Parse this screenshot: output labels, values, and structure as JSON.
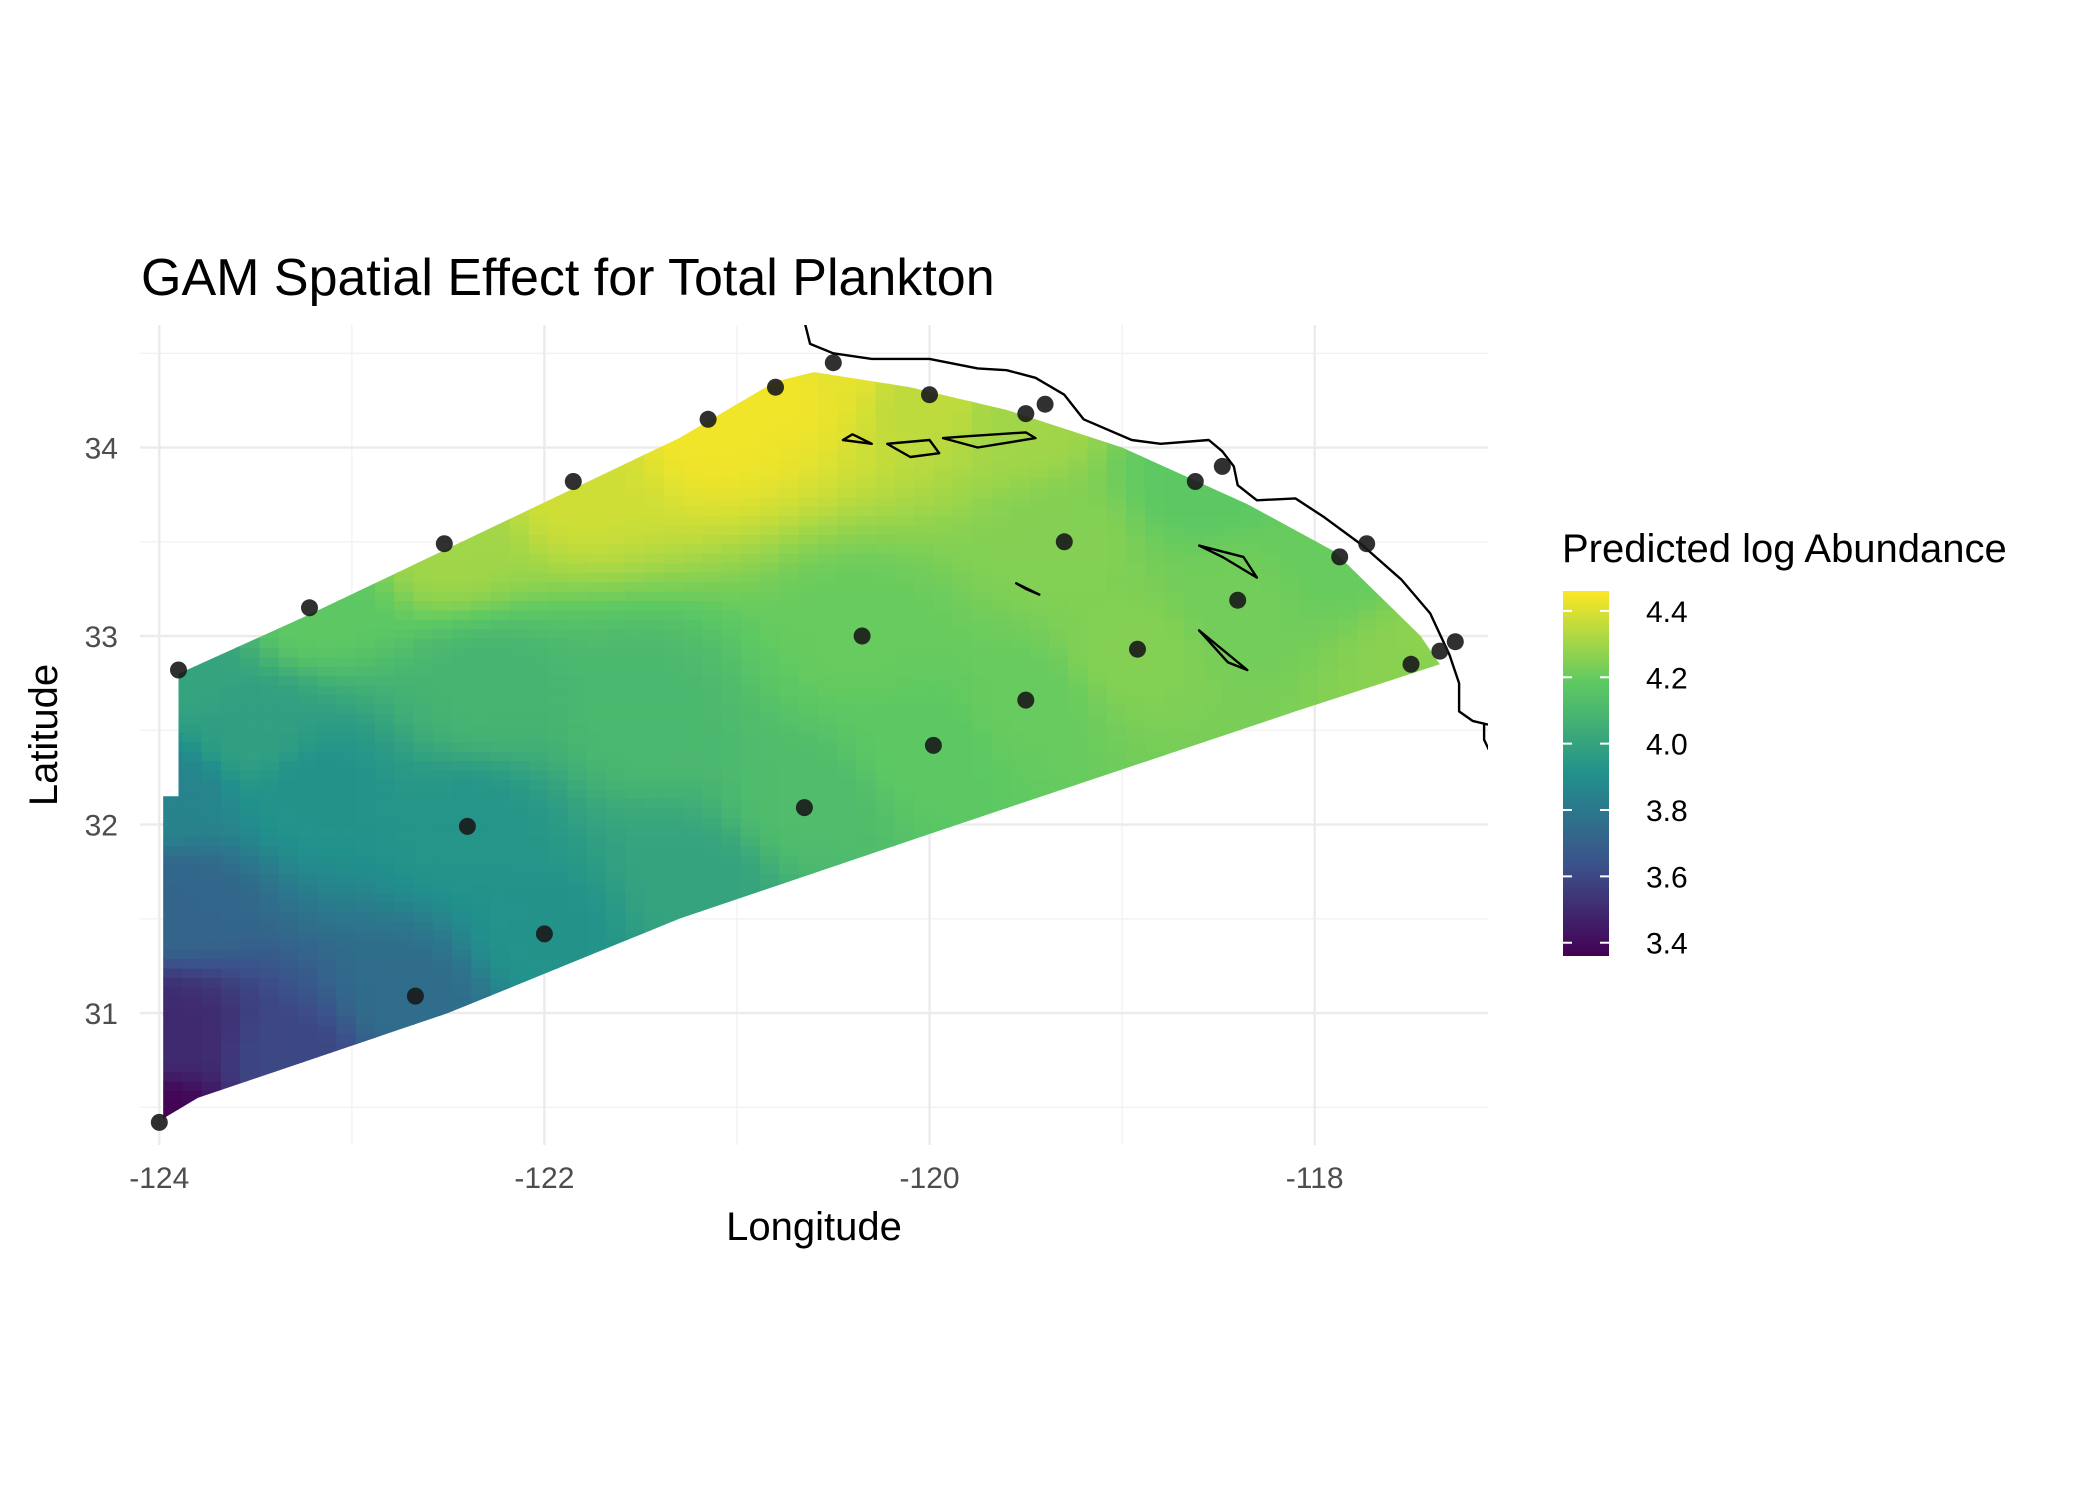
{
  "chart_data": {
    "type": "heatmap",
    "title": "GAM Spatial Effect for Total Plankton",
    "xlabel": "Longitude",
    "ylabel": "Latitude",
    "xlim": [
      -124.1,
      -117.1
    ],
    "ylim": [
      30.3,
      34.65
    ],
    "x_ticks": [
      -124,
      -122,
      -120,
      -118
    ],
    "y_ticks": [
      31,
      32,
      33,
      34
    ],
    "x_tick_labels": [
      "-124",
      "-122",
      "-120",
      "-118"
    ],
    "y_tick_labels": [
      "31",
      "32",
      "33",
      "34"
    ],
    "grid": true,
    "legend": {
      "title": "Predicted log Abundance",
      "placement": "right",
      "min": 3.36,
      "max": 4.46,
      "ticks": [
        3.4,
        3.6,
        3.8,
        4.0,
        4.2,
        4.4
      ],
      "tick_labels": [
        "3.4",
        "3.6",
        "3.8",
        "4.0",
        "4.2",
        "4.4"
      ],
      "colormap": "viridis"
    },
    "colors": [
      "#440154",
      "#3b528b",
      "#21918c",
      "#5ec962",
      "#fde725"
    ],
    "domain_polygon": [
      [
        -123.98,
        30.44
      ],
      [
        -123.98,
        32.15
      ],
      [
        -123.9,
        32.15
      ],
      [
        -123.9,
        32.8
      ],
      [
        -123.25,
        33.1
      ],
      [
        -121.3,
        34.05
      ],
      [
        -120.8,
        34.35
      ],
      [
        -120.6,
        34.4
      ],
      [
        -120.1,
        34.32
      ],
      [
        -119.6,
        34.2
      ],
      [
        -119.0,
        34.0
      ],
      [
        -118.35,
        33.7
      ],
      [
        -117.9,
        33.45
      ],
      [
        -117.45,
        33.0
      ],
      [
        -117.35,
        32.85
      ],
      [
        -118.1,
        32.6
      ],
      [
        -120.0,
        31.95
      ],
      [
        -121.3,
        31.5
      ],
      [
        -122.5,
        31.0
      ],
      [
        -123.8,
        30.55
      ]
    ],
    "field_points": [
      {
        "lon": -124.0,
        "lat": 30.42,
        "value": 3.37
      },
      {
        "lon": -123.9,
        "lat": 32.82,
        "value": 4.0
      },
      {
        "lon": -123.9,
        "lat": 31.6,
        "value": 3.72
      },
      {
        "lon": -123.95,
        "lat": 30.9,
        "value": 3.5
      },
      {
        "lon": -123.95,
        "lat": 32.15,
        "value": 3.85
      },
      {
        "lon": -123.2,
        "lat": 33.15,
        "value": 4.18
      },
      {
        "lon": -122.5,
        "lat": 33.5,
        "value": 4.3
      },
      {
        "lon": -121.85,
        "lat": 33.82,
        "value": 4.38
      },
      {
        "lon": -121.15,
        "lat": 34.15,
        "value": 4.44
      },
      {
        "lon": -120.8,
        "lat": 34.32,
        "value": 4.44
      },
      {
        "lon": -120.5,
        "lat": 34.45,
        "value": 4.42
      },
      {
        "lon": -120.0,
        "lat": 34.28,
        "value": 4.35
      },
      {
        "lon": -119.5,
        "lat": 34.17,
        "value": 4.3
      },
      {
        "lon": -119.3,
        "lat": 33.5,
        "value": 4.25
      },
      {
        "lon": -118.6,
        "lat": 33.82,
        "value": 4.18
      },
      {
        "lon": -118.45,
        "lat": 33.9,
        "value": 4.18
      },
      {
        "lon": -117.9,
        "lat": 33.42,
        "value": 4.2
      },
      {
        "lon": -117.7,
        "lat": 33.48,
        "value": 4.2
      },
      {
        "lon": -118.4,
        "lat": 33.2,
        "value": 4.22
      },
      {
        "lon": -118.95,
        "lat": 32.93,
        "value": 4.25
      },
      {
        "lon": -117.45,
        "lat": 32.85,
        "value": 4.26
      },
      {
        "lon": -117.35,
        "lat": 32.95,
        "value": 4.27
      },
      {
        "lon": -119.5,
        "lat": 32.65,
        "value": 4.2
      },
      {
        "lon": -120.35,
        "lat": 33.0,
        "value": 4.2
      },
      {
        "lon": -120.0,
        "lat": 32.42,
        "value": 4.18
      },
      {
        "lon": -120.65,
        "lat": 32.1,
        "value": 4.12
      },
      {
        "lon": -122.4,
        "lat": 32.0,
        "value": 3.93
      },
      {
        "lon": -123.2,
        "lat": 32.2,
        "value": 3.92
      },
      {
        "lon": -123.5,
        "lat": 32.5,
        "value": 3.98
      },
      {
        "lon": -122.0,
        "lat": 31.42,
        "value": 3.92
      },
      {
        "lon": -122.7,
        "lat": 31.08,
        "value": 3.75
      },
      {
        "lon": -123.3,
        "lat": 30.75,
        "value": 3.6
      },
      {
        "lon": -121.2,
        "lat": 31.7,
        "value": 4.0
      },
      {
        "lon": -121.5,
        "lat": 32.6,
        "value": 4.1
      },
      {
        "lon": -122.3,
        "lat": 32.7,
        "value": 4.08
      }
    ],
    "stations": [
      {
        "lon": -124.0,
        "lat": 30.42
      },
      {
        "lon": -123.9,
        "lat": 32.82
      },
      {
        "lon": -123.22,
        "lat": 33.15
      },
      {
        "lon": -122.52,
        "lat": 33.49
      },
      {
        "lon": -121.85,
        "lat": 33.82
      },
      {
        "lon": -121.15,
        "lat": 34.15
      },
      {
        "lon": -120.8,
        "lat": 34.32
      },
      {
        "lon": -120.5,
        "lat": 34.45
      },
      {
        "lon": -120.0,
        "lat": 34.28
      },
      {
        "lon": -119.5,
        "lat": 34.18
      },
      {
        "lon": -119.4,
        "lat": 34.23
      },
      {
        "lon": -119.3,
        "lat": 33.5
      },
      {
        "lon": -118.62,
        "lat": 33.82
      },
      {
        "lon": -118.48,
        "lat": 33.9
      },
      {
        "lon": -117.87,
        "lat": 33.42
      },
      {
        "lon": -117.73,
        "lat": 33.49
      },
      {
        "lon": -118.4,
        "lat": 33.19
      },
      {
        "lon": -118.92,
        "lat": 32.93
      },
      {
        "lon": -117.5,
        "lat": 32.85
      },
      {
        "lon": -117.35,
        "lat": 32.92
      },
      {
        "lon": -117.27,
        "lat": 32.97
      },
      {
        "lon": -119.5,
        "lat": 32.66
      },
      {
        "lon": -120.35,
        "lat": 33.0
      },
      {
        "lon": -119.98,
        "lat": 32.42
      },
      {
        "lon": -120.65,
        "lat": 32.09
      },
      {
        "lon": -122.4,
        "lat": 31.99
      },
      {
        "lon": -122.0,
        "lat": 31.42
      },
      {
        "lon": -122.67,
        "lat": 31.09
      }
    ],
    "coastline": [
      [
        -120.65,
        34.67
      ],
      [
        -120.62,
        34.55
      ],
      [
        -120.5,
        34.5
      ],
      [
        -120.3,
        34.47
      ],
      [
        -120.0,
        34.47
      ],
      [
        -119.75,
        34.42
      ],
      [
        -119.6,
        34.41
      ],
      [
        -119.45,
        34.37
      ],
      [
        -119.3,
        34.28
      ],
      [
        -119.2,
        34.15
      ],
      [
        -118.95,
        34.04
      ],
      [
        -118.8,
        34.02
      ],
      [
        -118.55,
        34.04
      ],
      [
        -118.48,
        33.98
      ],
      [
        -118.42,
        33.9
      ],
      [
        -118.4,
        33.8
      ],
      [
        -118.3,
        33.72
      ],
      [
        -118.1,
        33.73
      ],
      [
        -117.95,
        33.63
      ],
      [
        -117.75,
        33.48
      ],
      [
        -117.55,
        33.3
      ],
      [
        -117.4,
        33.12
      ],
      [
        -117.3,
        32.9
      ],
      [
        -117.25,
        32.75
      ],
      [
        -117.25,
        32.6
      ],
      [
        -117.18,
        32.55
      ],
      [
        -117.1,
        32.53
      ]
    ],
    "coastline_south": [
      [
        -117.12,
        32.53
      ],
      [
        -117.12,
        32.45
      ],
      [
        -117.05,
        32.3
      ],
      [
        -116.95,
        32.2
      ]
    ],
    "islands": [
      [
        [
          -120.45,
          34.04
        ],
        [
          -120.3,
          34.02
        ],
        [
          -120.4,
          34.07
        ],
        [
          -120.45,
          34.04
        ]
      ],
      [
        [
          -120.22,
          34.02
        ],
        [
          -120.1,
          33.95
        ],
        [
          -119.95,
          33.97
        ],
        [
          -120.0,
          34.04
        ],
        [
          -120.22,
          34.02
        ]
      ],
      [
        [
          -119.93,
          34.05
        ],
        [
          -119.75,
          34.0
        ],
        [
          -119.45,
          34.05
        ],
        [
          -119.5,
          34.08
        ],
        [
          -119.8,
          34.06
        ],
        [
          -119.93,
          34.05
        ]
      ],
      [
        [
          -118.6,
          33.48
        ],
        [
          -118.48,
          33.42
        ],
        [
          -118.3,
          33.31
        ],
        [
          -118.37,
          33.42
        ],
        [
          -118.6,
          33.48
        ]
      ],
      [
        [
          -119.55,
          33.28
        ],
        [
          -119.43,
          33.22
        ],
        [
          -119.5,
          33.25
        ],
        [
          -119.55,
          33.28
        ]
      ],
      [
        [
          -118.6,
          33.03
        ],
        [
          -118.35,
          32.82
        ],
        [
          -118.45,
          32.86
        ],
        [
          -118.6,
          33.03
        ]
      ]
    ]
  }
}
